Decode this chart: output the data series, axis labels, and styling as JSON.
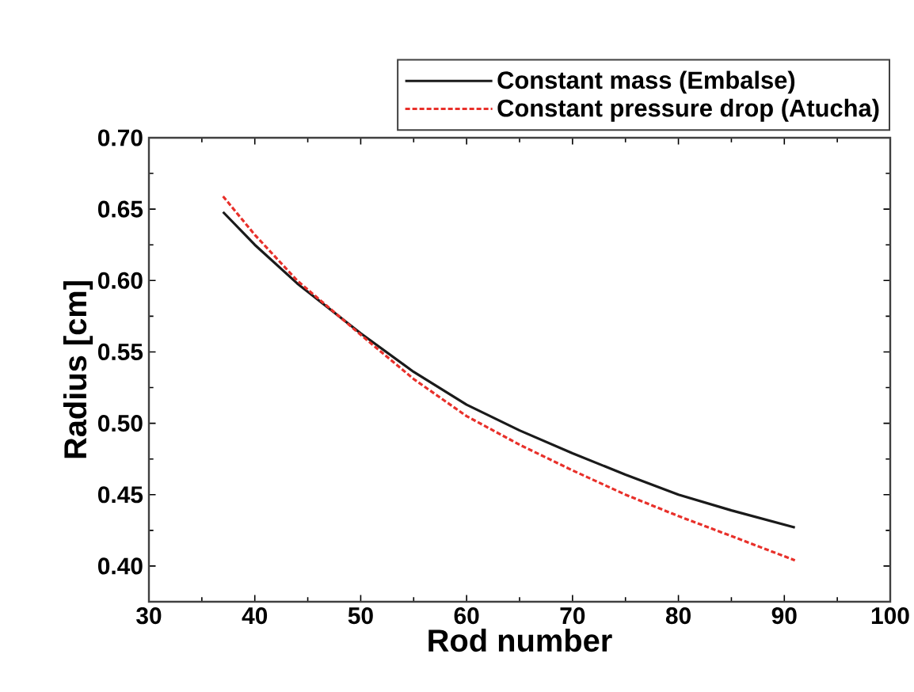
{
  "chart_data": {
    "type": "line",
    "xlabel": "Rod number",
    "ylabel": "Radius [cm]",
    "xlim": [
      30,
      100
    ],
    "ylim": [
      0.375,
      0.7
    ],
    "xticks": [
      30,
      40,
      50,
      60,
      70,
      80,
      90,
      100
    ],
    "yticks": [
      {
        "value": 0.4,
        "label": "0.40"
      },
      0.45,
      {
        "value": 0.5,
        "label": "0.50"
      },
      0.55,
      {
        "value": 0.6,
        "label": "0.60"
      },
      0.65,
      {
        "value": 0.7,
        "label": "0.70"
      }
    ],
    "legend": "top right",
    "grid": false,
    "marker": "none",
    "series": [
      {
        "name": "Constant mass (Embalse)",
        "color": "#1a1a1a",
        "line_style": "solid",
        "x": [
          37,
          40,
          44,
          50,
          55,
          60,
          65,
          70,
          75,
          80,
          85,
          91
        ],
        "values": [
          0.648,
          0.625,
          0.598,
          0.563,
          0.536,
          0.513,
          0.495,
          0.479,
          0.464,
          0.45,
          0.439,
          0.427
        ]
      },
      {
        "name": "Constant pressure drop (Atucha)",
        "color": "#e8302a",
        "line_style": "dashed",
        "x": [
          37,
          40,
          44,
          50,
          55,
          60,
          65,
          70,
          75,
          80,
          85,
          91
        ],
        "values": [
          0.659,
          0.632,
          0.6,
          0.562,
          0.531,
          0.505,
          0.485,
          0.467,
          0.45,
          0.435,
          0.421,
          0.404
        ]
      }
    ]
  }
}
